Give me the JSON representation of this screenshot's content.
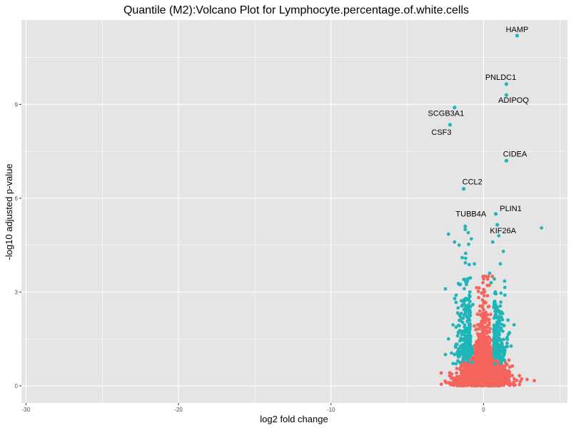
{
  "chart_data": {
    "type": "scatter",
    "title": "Quantile (M2):Volcano Plot for Lymphocyte.percentage.of.white.cells",
    "xlabel": "log2 fold change",
    "ylabel": "-log10 adjusted p-value",
    "xlim": [
      -30.3,
      5.5
    ],
    "ylim": [
      -0.55,
      11.7
    ],
    "x_ticks": [
      -30,
      -20,
      -10,
      0
    ],
    "x_tick_labels": [
      "-30",
      "-20",
      "-10",
      "0"
    ],
    "y_ticks": [
      0,
      3,
      6,
      9
    ],
    "y_tick_labels": [
      "0",
      "3",
      "6",
      "9"
    ],
    "grid": true,
    "legend": "none",
    "colors": {
      "significant": "#1fb5b9",
      "not_significant": "#f5645c",
      "panel": "#e5e5e5",
      "grid": "#ffffff"
    },
    "labeled_points": [
      {
        "gene": "HAMP",
        "x": 2.2,
        "y": 11.2
      },
      {
        "gene": "PNLDC1",
        "x": 1.5,
        "y": 9.65
      },
      {
        "gene": "ADIPOQ",
        "x": 1.5,
        "y": 9.3
      },
      {
        "gene": "SCGB3A1",
        "x": -1.9,
        "y": 8.9
      },
      {
        "gene": "CSF3",
        "x": -2.2,
        "y": 8.35
      },
      {
        "gene": "CIDEA",
        "x": 1.5,
        "y": 7.2
      },
      {
        "gene": "CCL2",
        "x": -1.3,
        "y": 6.3
      },
      {
        "gene": "PLIN1",
        "x": 0.8,
        "y": 5.5
      },
      {
        "gene": "TUBB4A",
        "x": -1.2,
        "y": 5.1
      },
      {
        "gene": "KIF26A",
        "x": 0.9,
        "y": 5.15
      }
    ],
    "significant_points": [
      [
        3.8,
        5.05
      ],
      [
        -2.3,
        4.85
      ],
      [
        -1.9,
        4.6
      ],
      [
        -1.6,
        4.5
      ],
      [
        -2.5,
        3.1
      ],
      [
        1.3,
        4.3
      ],
      [
        1.1,
        3.9
      ],
      [
        1.4,
        2.9
      ],
      [
        1.6,
        2.1
      ],
      [
        2.0,
        1.95
      ],
      [
        1.5,
        1.25
      ],
      [
        -2.0,
        1.95
      ],
      [
        -2.3,
        1.5
      ],
      [
        -2.5,
        1.0
      ],
      [
        -2.1,
        1.05
      ],
      [
        -1.2,
        5.0
      ],
      [
        -1.0,
        4.9
      ],
      [
        -0.8,
        4.7
      ],
      [
        -1.5,
        2.2
      ],
      [
        -1.7,
        1.6
      ],
      [
        -1.3,
        3.4
      ],
      [
        -0.9,
        3.0
      ],
      [
        0.4,
        3.6
      ],
      [
        0.5,
        3.3
      ],
      [
        1.0,
        2.4
      ],
      [
        0.7,
        1.8
      ],
      [
        0.9,
        1.4
      ],
      [
        -1.1,
        1.2
      ],
      [
        -0.7,
        2.6
      ],
      [
        1.2,
        1.1
      ],
      [
        -0.6,
        3.9
      ],
      [
        0.6,
        4.6
      ],
      [
        1.0,
        4.8
      ],
      [
        -1.4,
        4.1
      ],
      [
        -1.8,
        2.9
      ],
      [
        1.7,
        1.7
      ]
    ],
    "nonsignificant_count": 2200
  }
}
